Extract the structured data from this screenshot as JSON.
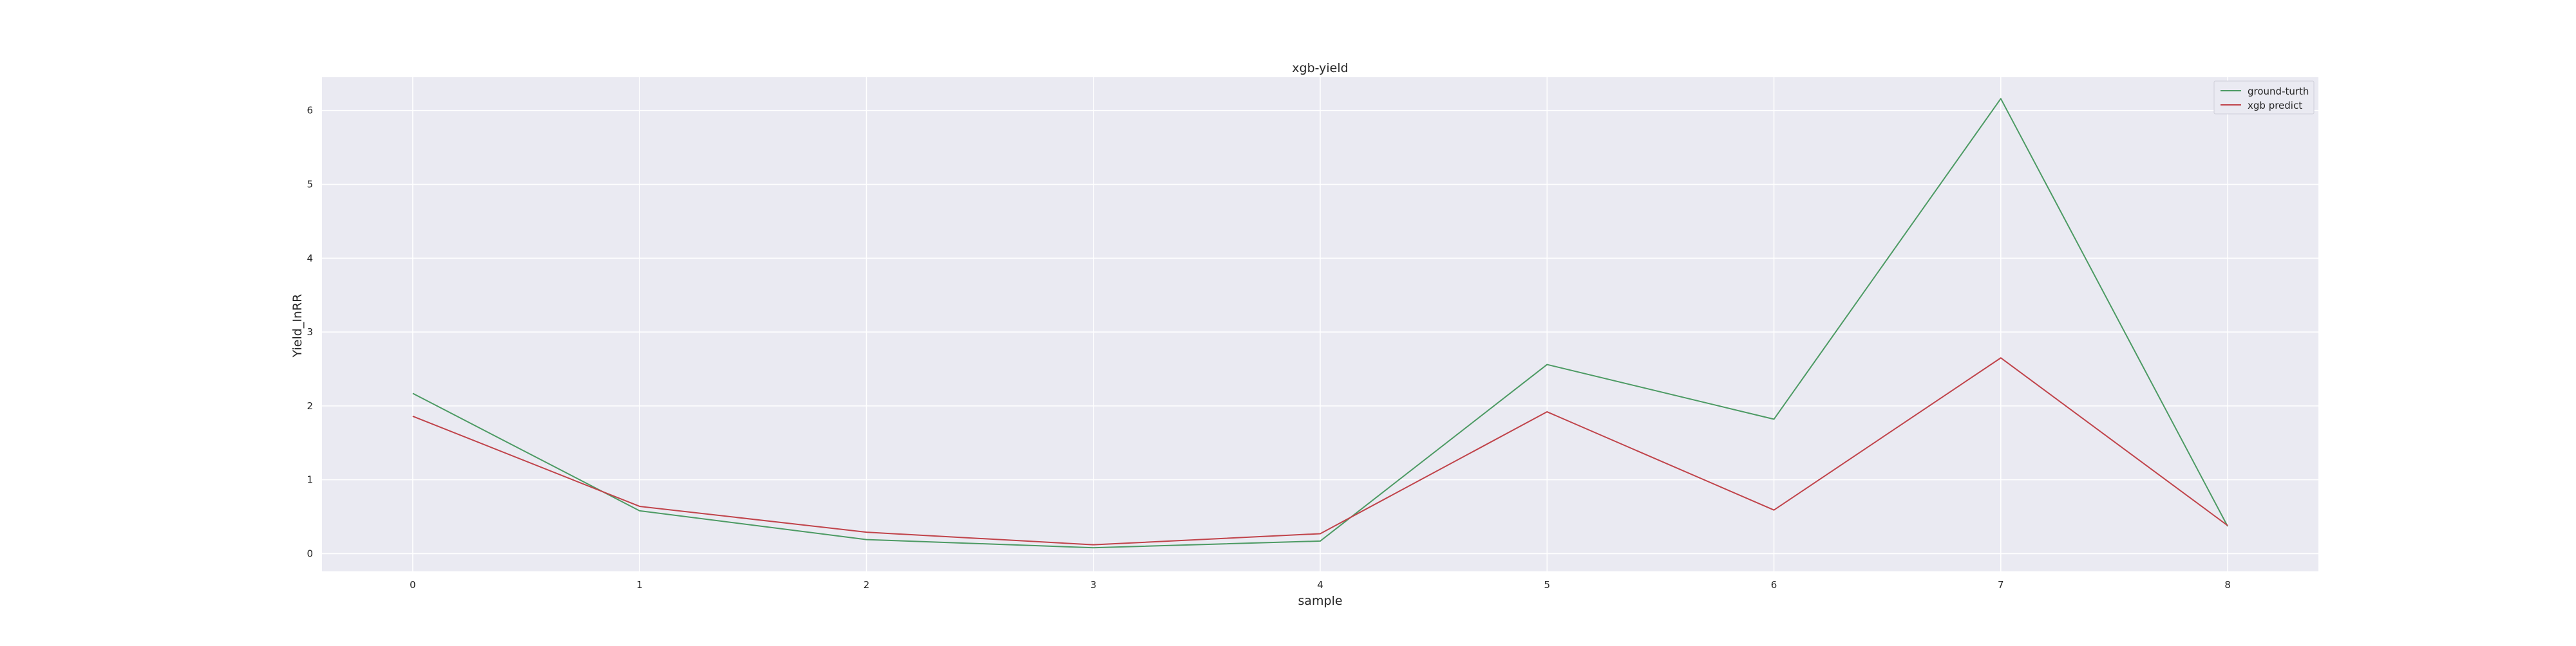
{
  "chart_data": {
    "type": "line",
    "title": "xgb-yield",
    "xlabel": "sample",
    "ylabel": "Yield_InRR",
    "x": [
      0,
      1,
      2,
      3,
      4,
      5,
      6,
      7,
      8
    ],
    "xticks": [
      "0",
      "1",
      "2",
      "3",
      "4",
      "5",
      "6",
      "7",
      "8"
    ],
    "yticks": [
      "0",
      "1",
      "2",
      "3",
      "4",
      "5",
      "6"
    ],
    "xlim": [
      -0.4,
      8.4
    ],
    "ylim": [
      -0.24,
      6.45
    ],
    "grid": true,
    "legend_position": "top-right",
    "series": [
      {
        "name": "ground-turth",
        "color": "#4c9a63",
        "values": [
          2.17,
          0.58,
          0.19,
          0.08,
          0.17,
          2.56,
          1.82,
          6.16,
          0.37
        ]
      },
      {
        "name": "xgb predict",
        "color": "#c0434a",
        "values": [
          1.86,
          0.64,
          0.29,
          0.12,
          0.27,
          1.92,
          0.59,
          2.65,
          0.38
        ]
      }
    ]
  }
}
